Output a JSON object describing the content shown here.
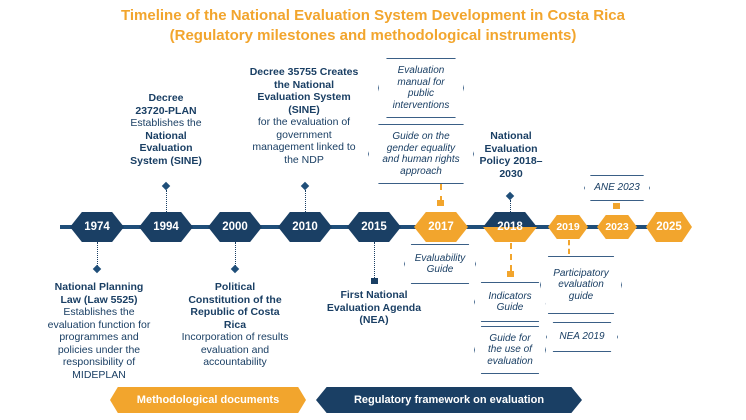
{
  "title": "Timeline of the National Evaluation System Development in Costa Rica",
  "subtitle": "(Regulatory milestones and methodological instruments)",
  "years": [
    "1974",
    "1994",
    "2000",
    "2010",
    "2015",
    "2017",
    "2018",
    "2019",
    "2023",
    "2025"
  ],
  "events": {
    "e1994": {
      "heading": "Decree 23720-PLAN",
      "line1": "Establishes the",
      "line2": "National Evaluation System (SINE)"
    },
    "e2010": {
      "heading": "Decree 35755 Creates the National Evaluation System (SINE)",
      "body": "for the evaluation of government management linked to the NDP"
    },
    "e2018": {
      "heading": "National Evaluation Policy 2018–2030"
    },
    "e1974": {
      "heading": "National Planning Law (Law 5525)",
      "body": "Establishes the evaluation function for programmes and policies under the responsibility of MIDEPLAN"
    },
    "e2000": {
      "heading": "Political Constitution of the Republic of Costa Rica",
      "body": "Incorporation of results evaluation and accountability"
    },
    "e2015": {
      "heading": "First National Evaluation Agenda (NEA)"
    }
  },
  "bubbles": {
    "manual": "Evaluation manual for public interventions",
    "gender": "Guide on the gender equality and human rights approach",
    "ane2023": "ANE 2023",
    "evaluability": "Evaluability Guide",
    "indicators": "Indicators Guide",
    "guide_use": "Guide for the use of evaluation",
    "participatory": "Participatory evaluation guide",
    "nea2019": "NEA 2019"
  },
  "bands": {
    "methodological": "Methodological documents",
    "regulatory": "Regulatory framework on evaluation"
  },
  "colors": {
    "navy": "#1a3f64",
    "orange": "#f2a52d"
  }
}
